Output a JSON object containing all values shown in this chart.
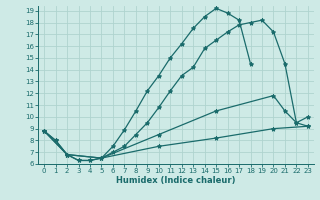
{
  "xlabel": "Humidex (Indice chaleur)",
  "bg_color": "#ceeae6",
  "grid_color": "#afd4cf",
  "line_color": "#1a6b6b",
  "xlim": [
    -0.5,
    23.5
  ],
  "ylim": [
    6,
    19.4
  ],
  "xticks": [
    0,
    1,
    2,
    3,
    4,
    5,
    6,
    7,
    8,
    9,
    10,
    11,
    12,
    13,
    14,
    15,
    16,
    17,
    18,
    19,
    20,
    21,
    22,
    23
  ],
  "yticks": [
    6,
    7,
    8,
    9,
    10,
    11,
    12,
    13,
    14,
    15,
    16,
    17,
    18,
    19
  ],
  "curve1_x": [
    0,
    1,
    2,
    3,
    4,
    5,
    6,
    7,
    8,
    9,
    10,
    11,
    12,
    13,
    14,
    15,
    16,
    17,
    18
  ],
  "curve1_y": [
    8.8,
    8.0,
    6.8,
    6.3,
    6.3,
    6.5,
    7.5,
    8.9,
    10.5,
    12.2,
    13.5,
    15.0,
    16.2,
    17.5,
    18.5,
    19.2,
    18.8,
    18.2,
    14.5
  ],
  "curve2_x": [
    0,
    1,
    2,
    3,
    4,
    5,
    6,
    7,
    8,
    9,
    10,
    11,
    12,
    13,
    14,
    15,
    16,
    17,
    18,
    19,
    20,
    21,
    22,
    23
  ],
  "curve2_y": [
    8.8,
    8.0,
    6.8,
    6.3,
    6.3,
    6.5,
    7.0,
    7.5,
    8.5,
    9.5,
    10.8,
    12.2,
    13.5,
    14.2,
    15.8,
    16.5,
    17.2,
    17.8,
    18.0,
    18.2,
    17.2,
    14.5,
    9.5,
    9.2
  ],
  "curve3_x": [
    0,
    2,
    5,
    10,
    15,
    20,
    21,
    22,
    23
  ],
  "curve3_y": [
    8.8,
    6.8,
    6.5,
    8.5,
    10.5,
    11.8,
    10.5,
    9.5,
    10.0
  ],
  "curve4_x": [
    0,
    2,
    5,
    10,
    15,
    20,
    23
  ],
  "curve4_y": [
    8.8,
    6.8,
    6.5,
    7.5,
    8.2,
    9.0,
    9.2
  ]
}
